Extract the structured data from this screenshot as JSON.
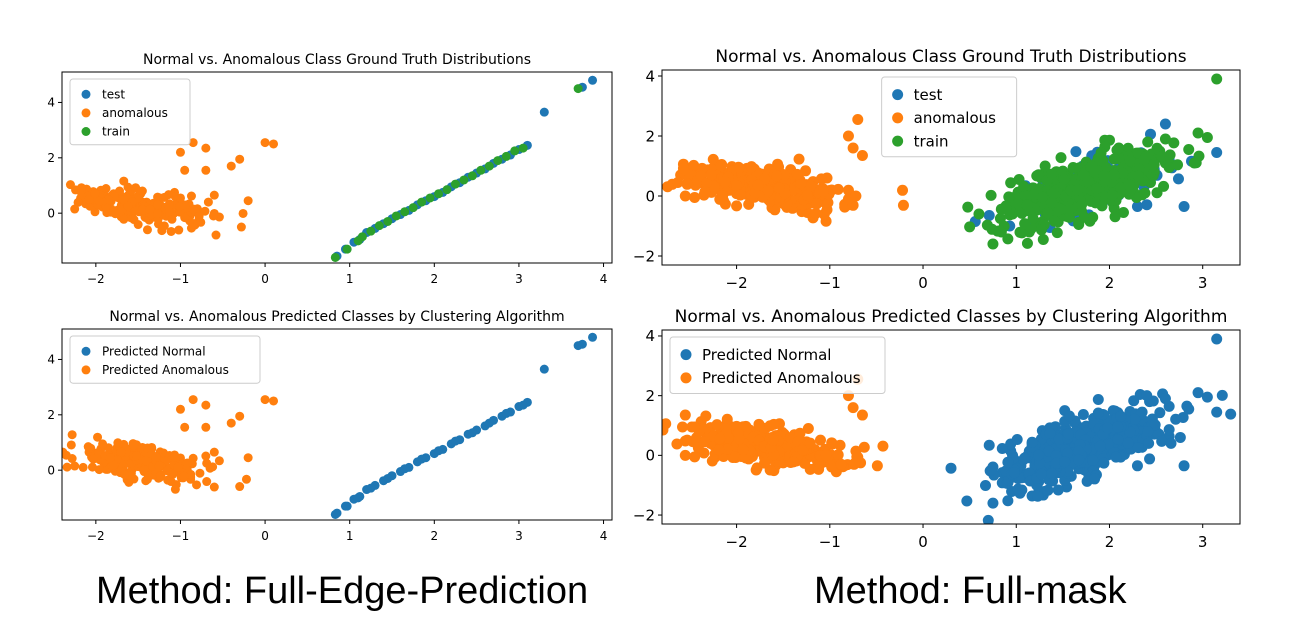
{
  "captions": {
    "left": "Method: Full-Edge-Prediction",
    "right": "Method: Full-mask"
  },
  "colors": {
    "blue": "#1f77b4",
    "orange": "#ff7f0e",
    "green": "#2ca02c"
  },
  "chart_data": [
    {
      "id": "left-top",
      "type": "scatter",
      "title": "Normal vs. Anomalous Class Ground Truth Distributions",
      "xlabel": "",
      "ylabel": "",
      "xlim": [
        -2.4,
        4.1
      ],
      "ylim": [
        -1.8,
        5.1
      ],
      "xticks": [
        -2,
        -1,
        0,
        1,
        2,
        3,
        4
      ],
      "yticks": [
        0,
        2,
        4
      ],
      "legend": "top-left",
      "series": [
        {
          "name": "test",
          "color": "#1f77b4",
          "cluster": "line",
          "points": [
            [
              0.85,
              -1.55
            ],
            [
              0.95,
              -1.3
            ],
            [
              1.05,
              -1.05
            ],
            [
              1.12,
              -0.95
            ],
            [
              1.2,
              -0.7
            ],
            [
              1.3,
              -0.55
            ],
            [
              1.4,
              -0.38
            ],
            [
              1.5,
              -0.2
            ],
            [
              1.6,
              -0.05
            ],
            [
              1.7,
              0.1
            ],
            [
              1.8,
              0.3
            ],
            [
              1.9,
              0.45
            ],
            [
              2.0,
              0.6
            ],
            [
              2.1,
              0.75
            ],
            [
              2.2,
              0.95
            ],
            [
              2.3,
              1.1
            ],
            [
              2.4,
              1.3
            ],
            [
              2.5,
              1.45
            ],
            [
              2.6,
              1.6
            ],
            [
              2.7,
              1.8
            ],
            [
              2.8,
              1.95
            ],
            [
              2.9,
              2.1
            ],
            [
              3.0,
              2.3
            ],
            [
              3.1,
              2.45
            ],
            [
              3.3,
              3.65
            ],
            [
              3.75,
              4.55
            ],
            [
              3.87,
              4.8
            ]
          ]
        },
        {
          "name": "anomalous",
          "color": "#ff7f0e",
          "cluster": "blob",
          "center": [
            -1.45,
            0.25
          ],
          "spread": [
            0.4,
            0.35
          ],
          "n": 220,
          "extra": [
            [
              -0.85,
              2.55
            ],
            [
              -1.0,
              2.2
            ],
            [
              -0.7,
              2.35
            ],
            [
              -0.3,
              1.95
            ],
            [
              -0.4,
              1.7
            ],
            [
              0.0,
              2.55
            ],
            [
              0.1,
              2.5
            ],
            [
              -0.2,
              0.45
            ],
            [
              -0.95,
              1.55
            ],
            [
              -0.7,
              1.55
            ],
            [
              -2.25,
              0.15
            ],
            [
              -0.6,
              0.65
            ]
          ]
        },
        {
          "name": "train",
          "color": "#2ca02c",
          "cluster": "line",
          "points": [
            [
              0.83,
              -1.6
            ],
            [
              0.97,
              -1.3
            ],
            [
              1.1,
              -1.0
            ],
            [
              1.15,
              -0.85
            ],
            [
              1.25,
              -0.65
            ],
            [
              1.35,
              -0.45
            ],
            [
              1.45,
              -0.3
            ],
            [
              1.55,
              -0.1
            ],
            [
              1.65,
              0.05
            ],
            [
              1.75,
              0.2
            ],
            [
              1.85,
              0.4
            ],
            [
              1.95,
              0.55
            ],
            [
              2.05,
              0.7
            ],
            [
              2.15,
              0.85
            ],
            [
              2.25,
              1.05
            ],
            [
              2.35,
              1.2
            ],
            [
              2.45,
              1.35
            ],
            [
              2.55,
              1.55
            ],
            [
              2.65,
              1.7
            ],
            [
              2.75,
              1.9
            ],
            [
              2.85,
              2.05
            ],
            [
              2.95,
              2.25
            ],
            [
              3.05,
              2.35
            ],
            [
              3.7,
              4.5
            ]
          ]
        }
      ]
    },
    {
      "id": "right-top",
      "type": "scatter",
      "title": "Normal vs. Anomalous Class Ground Truth Distributions",
      "xlabel": "",
      "ylabel": "",
      "xlim": [
        -2.8,
        3.4
      ],
      "ylim": [
        -2.3,
        4.2
      ],
      "xticks": [
        -2,
        -1,
        0,
        1,
        2,
        3
      ],
      "yticks": [
        -2,
        0,
        2,
        4
      ],
      "legend": "top-center",
      "series": [
        {
          "name": "test",
          "color": "#1f77b4",
          "cluster": "blob",
          "center": [
            1.7,
            0.2
          ],
          "spread": [
            0.45,
            0.6
          ],
          "n": 120,
          "extra": [
            [
              3.15,
              1.45
            ],
            [
              2.8,
              -0.35
            ],
            [
              2.3,
              -0.35
            ],
            [
              2.6,
              2.4
            ]
          ]
        },
        {
          "name": "anomalous",
          "color": "#ff7f0e",
          "cluster": "blob",
          "center": [
            -1.75,
            0.35
          ],
          "spread": [
            0.45,
            0.35
          ],
          "n": 330,
          "extra": [
            [
              -0.8,
              2.0
            ],
            [
              -0.7,
              2.55
            ],
            [
              -0.65,
              1.35
            ],
            [
              -2.55,
              0.0
            ],
            [
              -2.45,
              -0.05
            ],
            [
              -0.75,
              1.6
            ]
          ]
        },
        {
          "name": "train",
          "color": "#2ca02c",
          "cluster": "blob",
          "center": [
            1.7,
            0.25
          ],
          "spread": [
            0.45,
            0.65
          ],
          "n": 430,
          "extra": [
            [
              3.15,
              3.9
            ],
            [
              2.95,
              2.1
            ],
            [
              2.85,
              1.55
            ],
            [
              0.75,
              -1.6
            ],
            [
              2.6,
              1.9
            ],
            [
              3.05,
              1.95
            ]
          ]
        }
      ]
    },
    {
      "id": "left-bottom",
      "type": "scatter",
      "title": "Normal vs. Anomalous Predicted Classes by Clustering Algorithm",
      "xlabel": "",
      "ylabel": "",
      "xlim": [
        -2.4,
        4.1
      ],
      "ylim": [
        -1.8,
        5.1
      ],
      "xticks": [
        -2,
        -1,
        0,
        1,
        2,
        3,
        4
      ],
      "yticks": [
        0,
        2,
        4
      ],
      "legend": "top-left",
      "series": [
        {
          "name": "Predicted Normal",
          "color": "#1f77b4",
          "cluster": "line",
          "points": [
            [
              0.85,
              -1.55
            ],
            [
              0.95,
              -1.3
            ],
            [
              1.05,
              -1.05
            ],
            [
              1.12,
              -0.95
            ],
            [
              1.2,
              -0.7
            ],
            [
              1.3,
              -0.55
            ],
            [
              1.4,
              -0.38
            ],
            [
              1.5,
              -0.2
            ],
            [
              1.6,
              -0.05
            ],
            [
              1.7,
              0.1
            ],
            [
              1.8,
              0.3
            ],
            [
              1.9,
              0.45
            ],
            [
              2.0,
              0.6
            ],
            [
              2.1,
              0.75
            ],
            [
              2.2,
              0.95
            ],
            [
              2.3,
              1.1
            ],
            [
              2.4,
              1.3
            ],
            [
              2.5,
              1.45
            ],
            [
              2.6,
              1.6
            ],
            [
              2.7,
              1.8
            ],
            [
              2.8,
              1.95
            ],
            [
              2.9,
              2.1
            ],
            [
              3.0,
              2.3
            ],
            [
              3.1,
              2.45
            ],
            [
              3.3,
              3.65
            ],
            [
              3.75,
              4.55
            ],
            [
              3.87,
              4.8
            ],
            [
              0.83,
              -1.6
            ],
            [
              0.97,
              -1.3
            ],
            [
              1.1,
              -1.0
            ],
            [
              1.25,
              -0.65
            ],
            [
              1.45,
              -0.3
            ],
            [
              1.65,
              0.05
            ],
            [
              1.85,
              0.4
            ],
            [
              2.05,
              0.7
            ],
            [
              2.25,
              1.05
            ],
            [
              2.45,
              1.35
            ],
            [
              2.65,
              1.7
            ],
            [
              2.85,
              2.05
            ],
            [
              3.05,
              2.35
            ],
            [
              3.7,
              4.5
            ]
          ]
        },
        {
          "name": "Predicted Anomalous",
          "color": "#ff7f0e",
          "cluster": "blob",
          "center": [
            -1.45,
            0.25
          ],
          "spread": [
            0.4,
            0.35
          ],
          "n": 220,
          "extra": [
            [
              -0.85,
              2.55
            ],
            [
              -1.0,
              2.2
            ],
            [
              -0.7,
              2.35
            ],
            [
              -0.3,
              1.95
            ],
            [
              -0.4,
              1.7
            ],
            [
              0.0,
              2.55
            ],
            [
              0.1,
              2.5
            ],
            [
              -0.2,
              0.45
            ],
            [
              -0.95,
              1.55
            ],
            [
              -0.7,
              1.55
            ],
            [
              -2.25,
              0.15
            ],
            [
              -0.6,
              0.65
            ]
          ]
        }
      ]
    },
    {
      "id": "right-bottom",
      "type": "scatter",
      "title": "Normal vs. Anomalous Predicted Classes by Clustering Algorithm",
      "xlabel": "",
      "ylabel": "",
      "xlim": [
        -2.8,
        3.4
      ],
      "ylim": [
        -2.3,
        4.2
      ],
      "xticks": [
        -2,
        -1,
        0,
        1,
        2,
        3
      ],
      "yticks": [
        -2,
        0,
        2,
        4
      ],
      "legend": "top-left",
      "series": [
        {
          "name": "Predicted Normal",
          "color": "#1f77b4",
          "cluster": "blob",
          "center": [
            1.7,
            0.25
          ],
          "spread": [
            0.45,
            0.65
          ],
          "n": 520,
          "extra": [
            [
              3.15,
              3.9
            ],
            [
              2.95,
              2.1
            ],
            [
              3.15,
              1.45
            ],
            [
              2.85,
              1.55
            ],
            [
              0.75,
              -1.6
            ],
            [
              2.6,
              1.9
            ],
            [
              3.05,
              1.95
            ],
            [
              2.8,
              -0.35
            ],
            [
              2.3,
              -0.35
            ]
          ]
        },
        {
          "name": "Predicted Anomalous",
          "color": "#ff7f0e",
          "cluster": "blob",
          "center": [
            -1.75,
            0.35
          ],
          "spread": [
            0.45,
            0.35
          ],
          "n": 330,
          "extra": [
            [
              -0.8,
              2.0
            ],
            [
              -0.7,
              2.55
            ],
            [
              -0.65,
              1.35
            ],
            [
              -2.55,
              0.0
            ],
            [
              -2.45,
              -0.05
            ],
            [
              -0.75,
              1.6
            ]
          ]
        }
      ]
    }
  ]
}
